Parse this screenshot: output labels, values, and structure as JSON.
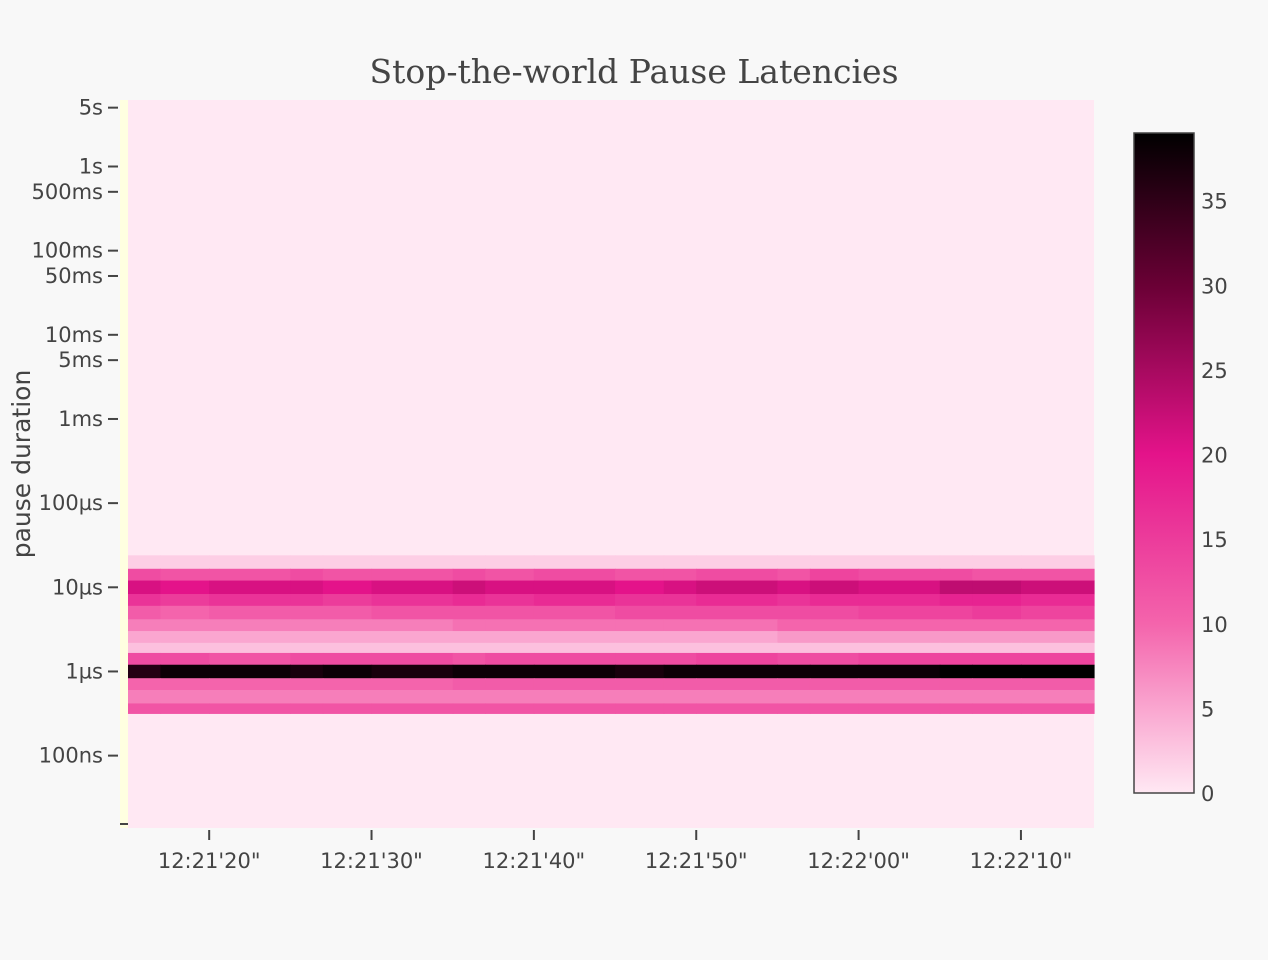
{
  "chart_data": {
    "type": "heatmap",
    "title": "Stop-the-world Pause Latencies",
    "ylabel": "pause duration",
    "xlabel": "",
    "x_ticks": [
      "12:21'20\"",
      "12:21'30\"",
      "12:21'40\"",
      "12:21'50\"",
      "12:22'00\"",
      "12:22'10\""
    ],
    "x_range_seconds": [
      0,
      59.5
    ],
    "x_tick_seconds": [
      5,
      15,
      25,
      35,
      45,
      55
    ],
    "y_ticks": [
      "5s",
      "1s",
      "500ms",
      "100ms",
      "50ms",
      "10ms",
      "5ms",
      "1ms",
      "100µs",
      "10µs",
      "1µs",
      "100ns"
    ],
    "y_range_log10_seconds": [
      -7.86,
      0.79
    ],
    "colorscale": {
      "min": 0,
      "max": 39,
      "ticks": [
        0,
        5,
        10,
        15,
        20,
        25,
        30,
        35
      ],
      "stops": [
        {
          "v": 0,
          "color": "#ffe8f3"
        },
        {
          "v": 10,
          "color": "#f464ac"
        },
        {
          "v": 20,
          "color": "#e4138a"
        },
        {
          "v": 30,
          "color": "#6a0035"
        },
        {
          "v": 39,
          "color": "#000000"
        }
      ]
    },
    "legend": "right",
    "x_columns": [
      0,
      2,
      5,
      10,
      12,
      15,
      20,
      22,
      25,
      30,
      33,
      35,
      40,
      42,
      45,
      50,
      52,
      55
    ],
    "bands": [
      {
        "y_from_log10": -4.62,
        "y_to_log10": -4.78,
        "values": [
          2,
          2,
          2,
          2,
          2,
          2,
          2,
          2,
          2,
          2,
          2,
          2,
          2,
          2,
          2,
          2,
          2,
          2
        ]
      },
      {
        "y_from_log10": -4.78,
        "y_to_log10": -4.92,
        "values": [
          13,
          12,
          12,
          13,
          12,
          12,
          13,
          12,
          13,
          12,
          12,
          13,
          12,
          14,
          13,
          13,
          12,
          12
        ]
      },
      {
        "y_from_log10": -4.92,
        "y_to_log10": -5.08,
        "values": [
          21,
          20,
          21,
          21,
          20,
          21,
          22,
          21,
          21,
          20,
          21,
          22,
          21,
          22,
          21,
          23,
          23,
          22
        ]
      },
      {
        "y_from_log10": -5.08,
        "y_to_log10": -5.22,
        "values": [
          16,
          15,
          16,
          16,
          15,
          16,
          17,
          16,
          17,
          16,
          16,
          17,
          16,
          17,
          17,
          18,
          18,
          17
        ]
      },
      {
        "y_from_log10": -5.22,
        "y_to_log10": -5.38,
        "values": [
          11,
          10,
          11,
          11,
          11,
          12,
          12,
          12,
          12,
          13,
          13,
          13,
          13,
          13,
          14,
          14,
          15,
          14
        ]
      },
      {
        "y_from_log10": -5.38,
        "y_to_log10": -5.52,
        "values": [
          8,
          8,
          8,
          8,
          8,
          8,
          9,
          9,
          9,
          9,
          9,
          9,
          10,
          10,
          10,
          10,
          10,
          10
        ]
      },
      {
        "y_from_log10": -5.52,
        "y_to_log10": -5.66,
        "values": [
          5,
          5,
          5,
          5,
          5,
          5,
          5,
          5,
          5,
          5,
          5,
          5,
          6,
          6,
          6,
          6,
          6,
          6
        ]
      },
      {
        "y_from_log10": -5.66,
        "y_to_log10": -5.78,
        "values": [
          3,
          3,
          3,
          3,
          3,
          3,
          3,
          3,
          3,
          3,
          3,
          3,
          3,
          3,
          3,
          3,
          3,
          3
        ]
      },
      {
        "y_from_log10": -5.78,
        "y_to_log10": -5.92,
        "values": [
          13,
          13,
          12,
          13,
          13,
          13,
          12,
          13,
          13,
          13,
          13,
          14,
          13,
          13,
          14,
          14,
          14,
          14
        ]
      },
      {
        "y_from_log10": -5.92,
        "y_to_log10": -6.08,
        "values": [
          36,
          38,
          38,
          37,
          38,
          37,
          38,
          38,
          38,
          37,
          38,
          38,
          38,
          38,
          38,
          39,
          39,
          39
        ]
      },
      {
        "y_from_log10": -6.08,
        "y_to_log10": -6.22,
        "values": [
          10,
          10,
          10,
          10,
          10,
          10,
          11,
          11,
          11,
          11,
          11,
          11,
          11,
          11,
          11,
          11,
          11,
          11
        ]
      },
      {
        "y_from_log10": -6.22,
        "y_to_log10": -6.38,
        "values": [
          8,
          8,
          8,
          8,
          8,
          8,
          8,
          8,
          8,
          8,
          8,
          8,
          8,
          8,
          8,
          8,
          8,
          8
        ]
      },
      {
        "y_from_log10": -6.38,
        "y_to_log10": -6.5,
        "values": [
          12,
          12,
          12,
          12,
          12,
          12,
          12,
          12,
          12,
          12,
          12,
          12,
          12,
          12,
          12,
          12,
          12,
          12
        ]
      }
    ]
  }
}
